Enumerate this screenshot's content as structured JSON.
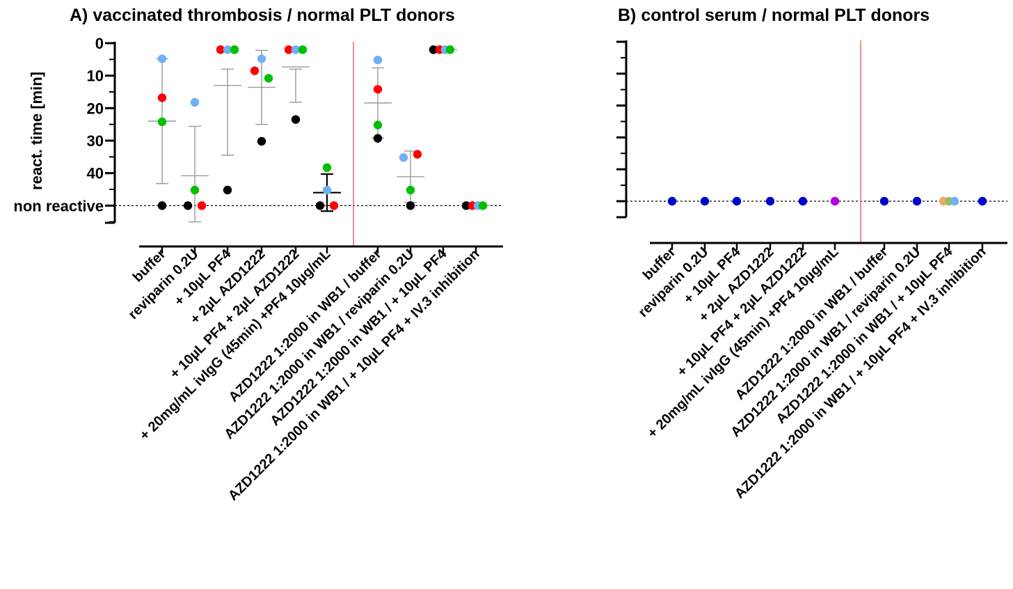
{
  "colors": {
    "red": "#ff0000",
    "green": "#00c000",
    "blue": "#6fb0f5",
    "black": "#000000",
    "navy": "#0000c8",
    "purple": "#b000e0",
    "orange": "#f0a868",
    "olive": "#a0b860",
    "grey": "#999999",
    "separator": "#f07070"
  },
  "chart_data": [
    {
      "type": "scatter",
      "panel": "A",
      "title": "A) vaccinated thrombosis / normal PLT donors",
      "ylabel": "react. time [min]",
      "ylim": [
        0,
        55
      ],
      "y_inverted": true,
      "yticks": [
        {
          "value": 0,
          "label": "0"
        },
        {
          "value": 10,
          "label": "10"
        },
        {
          "value": 20,
          "label": "20"
        },
        {
          "value": 30,
          "label": "30"
        },
        {
          "value": 40,
          "label": "40"
        },
        {
          "value": 50,
          "label": "non reactive"
        }
      ],
      "separator_after_index": 5,
      "categories": [
        "buffer",
        "reviparin 0.2U",
        "+ 10µL PF4",
        "+ 2µL AZD1222",
        "+ 10µL PF4 + 2µL AZD1222",
        "+ 20mg/mL ivIgG (45min) +PF4 10µg/mL",
        "AZD1222 1:2000 in WB1 / buffer",
        "AZD1222 1:2000 in WB1 / reviparin 0.2U",
        "AZD1222 1:2000 in WB1 / + 10µL PF4",
        "AZD1222 1:2000 in WB1 / + 10µL PF4 + IV.3 inhibition"
      ],
      "points": [
        [
          {
            "y": 4.8,
            "c": "blue",
            "dx": 0
          },
          {
            "y": 16.8,
            "c": "red",
            "dx": 0
          },
          {
            "y": 24.2,
            "c": "green",
            "dx": 0
          },
          {
            "y": 50,
            "c": "black",
            "dx": 0
          }
        ],
        [
          {
            "y": 18.2,
            "c": "blue",
            "dx": 0
          },
          {
            "y": 45.2,
            "c": "green",
            "dx": 0
          },
          {
            "y": 50,
            "c": "black",
            "dx": -10
          },
          {
            "y": 50,
            "c": "red",
            "dx": 10
          }
        ],
        [
          {
            "y": 2,
            "c": "red",
            "dx": -10
          },
          {
            "y": 2,
            "c": "blue",
            "dx": 0
          },
          {
            "y": 2,
            "c": "green",
            "dx": 10
          },
          {
            "y": 45.2,
            "c": "black",
            "dx": 0
          }
        ],
        [
          {
            "y": 4.8,
            "c": "blue",
            "dx": 0
          },
          {
            "y": 8.5,
            "c": "red",
            "dx": -10
          },
          {
            "y": 10.8,
            "c": "green",
            "dx": 10
          },
          {
            "y": 30.2,
            "c": "black",
            "dx": 0
          }
        ],
        [
          {
            "y": 2,
            "c": "red",
            "dx": -10
          },
          {
            "y": 2,
            "c": "blue",
            "dx": 0
          },
          {
            "y": 2,
            "c": "green",
            "dx": 10
          },
          {
            "y": 23.5,
            "c": "black",
            "dx": 0
          }
        ],
        [
          {
            "y": 38.3,
            "c": "green",
            "dx": 0
          },
          {
            "y": 45.2,
            "c": "blue",
            "dx": 0
          },
          {
            "y": 50,
            "c": "black",
            "dx": -10
          },
          {
            "y": 50,
            "c": "red",
            "dx": 10
          }
        ],
        [
          {
            "y": 5.2,
            "c": "blue",
            "dx": 0
          },
          {
            "y": 14.2,
            "c": "red",
            "dx": 0
          },
          {
            "y": 25.2,
            "c": "green",
            "dx": 0
          },
          {
            "y": 29.3,
            "c": "black",
            "dx": 0
          }
        ],
        [
          {
            "y": 35.2,
            "c": "blue",
            "dx": -10
          },
          {
            "y": 34.2,
            "c": "red",
            "dx": 10
          },
          {
            "y": 45.2,
            "c": "green",
            "dx": 0
          },
          {
            "y": 50,
            "c": "black",
            "dx": 0
          }
        ],
        [
          {
            "y": 2,
            "c": "black",
            "dx": -14
          },
          {
            "y": 2,
            "c": "red",
            "dx": -5
          },
          {
            "y": 2,
            "c": "blue",
            "dx": 3
          },
          {
            "y": 2,
            "c": "green",
            "dx": 10
          }
        ],
        [
          {
            "y": 50,
            "c": "black",
            "dx": -14
          },
          {
            "y": 50,
            "c": "red",
            "dx": -5
          },
          {
            "y": 50,
            "c": "blue",
            "dx": 3
          },
          {
            "y": 50,
            "c": "green",
            "dx": 10
          }
        ]
      ],
      "mean_sd": [
        {
          "mean": 24,
          "low": 4.8,
          "high": 43.2,
          "color": "grey"
        },
        {
          "mean": 40.8,
          "low": 25.6,
          "high": 55,
          "color": "grey"
        },
        {
          "mean": 13,
          "low": 8,
          "high": 34.5,
          "color": "grey"
        },
        {
          "mean": 13.6,
          "low": 2.2,
          "high": 25,
          "color": "grey"
        },
        {
          "mean": 7.3,
          "low": 8,
          "high": 18.2,
          "color": "grey"
        },
        {
          "mean": 46,
          "low": 40.3,
          "high": 51.7,
          "color": "black"
        },
        {
          "mean": 18.4,
          "low": 7.6,
          "high": 29.2,
          "color": "grey"
        },
        {
          "mean": 41.1,
          "low": 33.2,
          "high": 49,
          "color": "grey"
        },
        {
          "mean": 2,
          "low": 2,
          "high": 2,
          "color": "grey"
        },
        {
          "mean": 50,
          "low": 50,
          "high": 50,
          "color": "grey"
        }
      ]
    },
    {
      "type": "scatter",
      "panel": "B",
      "title": "B) control serum / normal PLT donors",
      "ylabel": "",
      "ylim": [
        0,
        55
      ],
      "y_inverted": true,
      "yticks": [
        {
          "value": 0,
          "label": ""
        },
        {
          "value": 10,
          "label": ""
        },
        {
          "value": 20,
          "label": ""
        },
        {
          "value": 30,
          "label": ""
        },
        {
          "value": 40,
          "label": ""
        },
        {
          "value": 50,
          "label": ""
        }
      ],
      "separator_after_index": 5,
      "categories": [
        "buffer",
        "reviparin 0.2U",
        "+ 10µL PF4",
        "+ 2µL AZD1222",
        "+ 10µL PF4 + 2µL AZD1222",
        "+ 20mg/mL ivIgG (45min) +PF4 10µg/mL",
        "AZD1222 1:2000 in WB1 / buffer",
        "AZD1222 1:2000 in WB1 / reviparin 0.2U",
        "AZD1222 1:2000 in WB1 / + 10µL PF4",
        "AZD1222 1:2000 in WB1 / + 10µL PF4 + IV.3 inhibition"
      ],
      "points": [
        [
          {
            "y": 50,
            "c": "navy",
            "dx": 0
          }
        ],
        [
          {
            "y": 50,
            "c": "navy",
            "dx": 0
          }
        ],
        [
          {
            "y": 50,
            "c": "navy",
            "dx": 0
          }
        ],
        [
          {
            "y": 50,
            "c": "navy",
            "dx": 0
          }
        ],
        [
          {
            "y": 50,
            "c": "navy",
            "dx": 0
          }
        ],
        [
          {
            "y": 50,
            "c": "purple",
            "dx": 0
          }
        ],
        [
          {
            "y": 50,
            "c": "navy",
            "dx": 0
          }
        ],
        [
          {
            "y": 50,
            "c": "navy",
            "dx": 0
          }
        ],
        [
          {
            "y": 50,
            "c": "orange",
            "dx": -8
          },
          {
            "y": 50,
            "c": "olive",
            "dx": 0
          },
          {
            "y": 50,
            "c": "blue",
            "dx": 8
          }
        ],
        [
          {
            "y": 50,
            "c": "navy",
            "dx": 0
          }
        ]
      ],
      "mean_sd": []
    }
  ]
}
